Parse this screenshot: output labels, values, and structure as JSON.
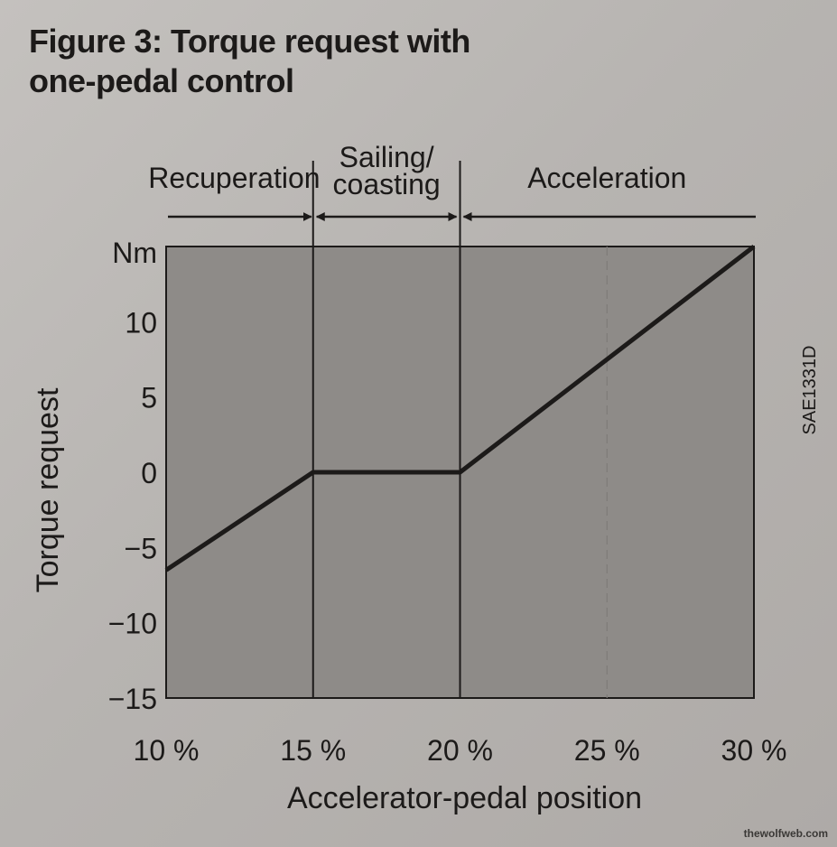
{
  "figure": {
    "title_line1": "Figure 3: Torque request with",
    "title_line2": "one-pedal control"
  },
  "zones": [
    {
      "label_lines": [
        "Recuperation"
      ]
    },
    {
      "label_lines": [
        "Sailing/",
        "coasting"
      ]
    },
    {
      "label_lines": [
        "Acceleration"
      ]
    }
  ],
  "code": "SAE1331D",
  "watermark": "thewolfweb.com",
  "colors": {
    "plot_fill": "#8e8b88",
    "line": "#1c1a19"
  },
  "chart_data": {
    "type": "line",
    "title": "Figure 3: Torque request with one-pedal control",
    "xlabel": "Accelerator-pedal position",
    "ylabel": "Torque request",
    "y_unit_label": "Nm",
    "xlim": [
      10,
      30
    ],
    "ylim": [
      -15,
      15
    ],
    "x_ticks": [
      10,
      15,
      20,
      25,
      30
    ],
    "x_tick_labels": [
      "10 %",
      "15 %",
      "20 %",
      "25 %",
      "30 %"
    ],
    "y_ticks": [
      -15,
      -10,
      -5,
      0,
      5,
      10
    ],
    "y_tick_labels": [
      "−15",
      "−10",
      "−5",
      "0",
      "5",
      "10"
    ],
    "grid": "vertical",
    "zone_boundaries": [
      15,
      20
    ],
    "series": [
      {
        "x": [
          10,
          15,
          20,
          30
        ],
        "y": [
          -6.5,
          0,
          0,
          15
        ]
      }
    ]
  }
}
